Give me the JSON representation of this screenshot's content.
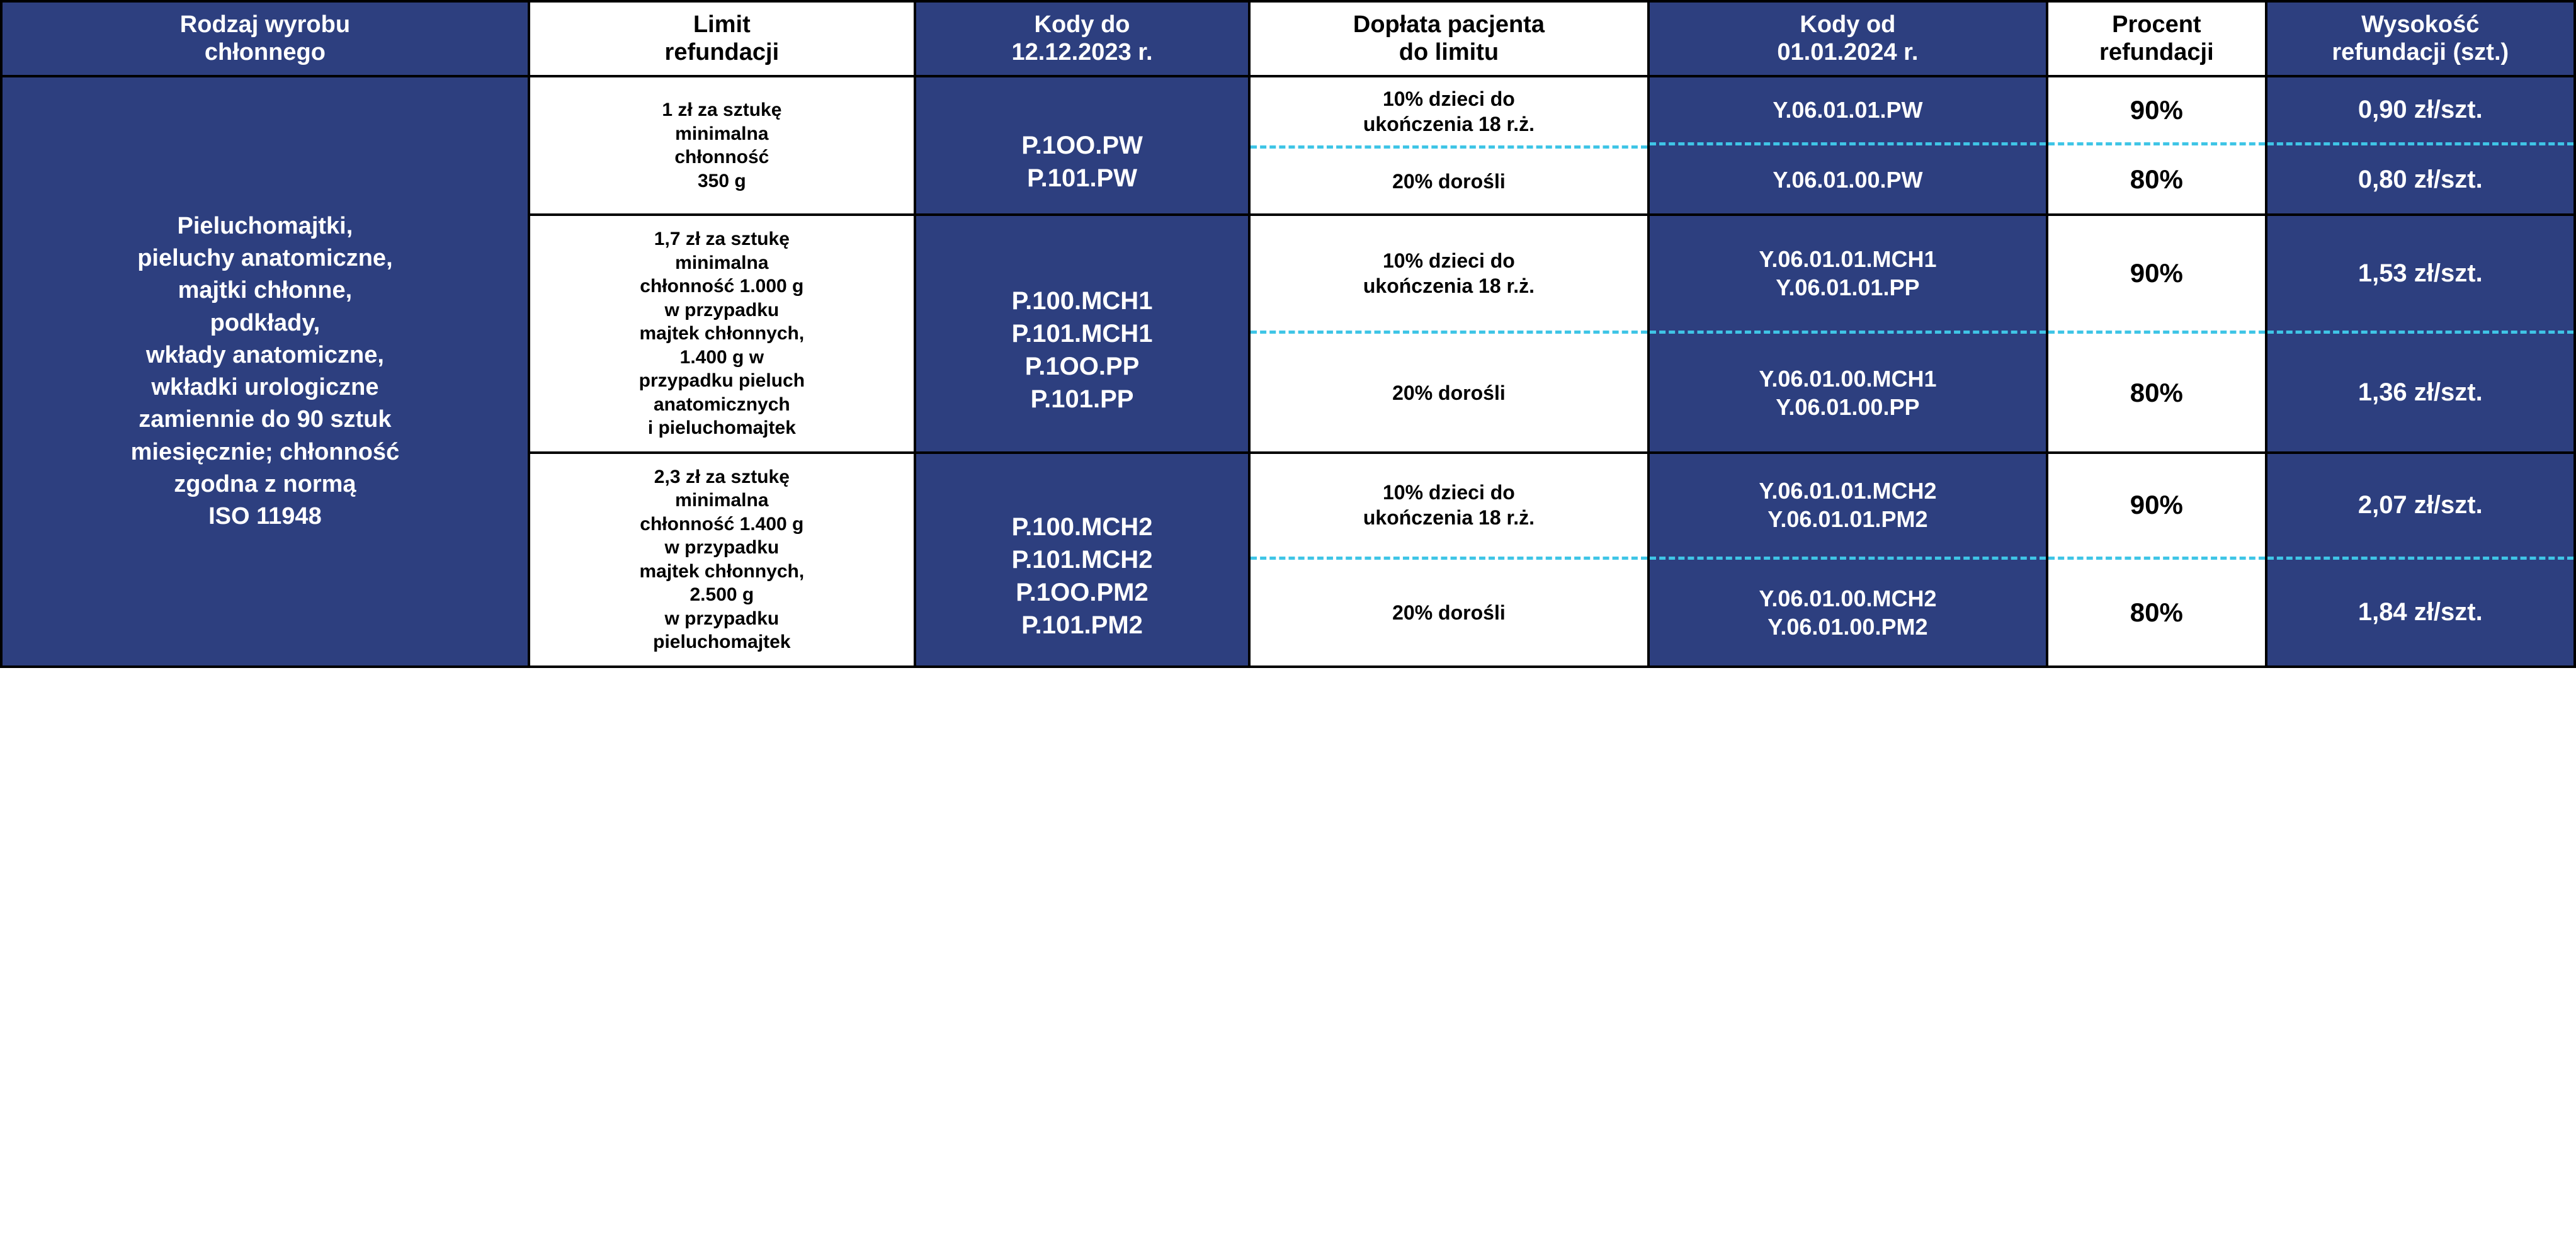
{
  "colors": {
    "blue": "#2d3f7f",
    "white": "#ffffff",
    "black": "#000000",
    "dashed": "#3fc5e6"
  },
  "headers": {
    "c1": "Rodzaj wyrobu\nchłonnego",
    "c2": "Limit\nrefundacji",
    "c3": "Kody do\n12.12.2023 r.",
    "c4": "Dopłata pacjenta\ndo limitu",
    "c5": "Kody od\n01.01.2024 r.",
    "c6": "Procent\nrefundacji",
    "c7": "Wysokość\nrefundacji (szt.)"
  },
  "row_label": "Pieluchomajtki,\npieluchy anatomiczne,\nmajtki chłonne,\npodkłady,\nwkłady anatomiczne,\nwkładki urologiczne\nzamiennie do 90 sztuk\nmiesięcznie; chłonność\nzgodna z normą\nISO 11948",
  "bands": [
    {
      "limit": "1 zł za sztukę\nminimalna\nchłonność\n350 g",
      "codes_old": "P.1OO.PW\nP.101.PW",
      "doplata_top": "10% dzieci do\nukończenia 18 r.ż.",
      "doplata_bot": "20% dorośli",
      "codes_new_top": "Y.06.01.01.PW",
      "codes_new_bot": "Y.06.01.00.PW",
      "procent_top": "90%",
      "procent_bot": "80%",
      "wys_top": "0,90 zł/szt.",
      "wys_bot": "0,80 zł/szt."
    },
    {
      "limit": "1,7 zł za sztukę\nminimalna\nchłonność 1.000 g\nw przypadku\nmajtek chłonnych,\n1.400 g w\nprzypadku pieluch\nanatomicznych\ni pieluchomajtek",
      "codes_old": "P.100.MCH1\nP.101.MCH1\nP.1OO.PP\nP.101.PP",
      "doplata_top": "10% dzieci do\nukończenia 18 r.ż.",
      "doplata_bot": "20% dorośli",
      "codes_new_top": "Y.06.01.01.MCH1\nY.06.01.01.PP",
      "codes_new_bot": "Y.06.01.00.MCH1\nY.06.01.00.PP",
      "procent_top": "90%",
      "procent_bot": "80%",
      "wys_top": "1,53 zł/szt.",
      "wys_bot": "1,36 zł/szt."
    },
    {
      "limit": "2,3 zł za sztukę\nminimalna\nchłonność 1.400 g\nw przypadku\nmajtek chłonnych,\n2.500 g\nw przypadku\npieluchomajtek",
      "codes_old": "P.100.MCH2\nP.101.MCH2\nP.1OO.PM2\nP.101.PM2",
      "doplata_top": "10% dzieci do\nukończenia 18 r.ż.",
      "doplata_bot": "20% dorośli",
      "codes_new_top": "Y.06.01.01.MCH2\nY.06.01.01.PM2",
      "codes_new_bot": "Y.06.01.00.MCH2\nY.06.01.00.PM2",
      "procent_top": "90%",
      "procent_bot": "80%",
      "wys_top": "2,07 zł/szt.",
      "wys_bot": "1,84 zł/szt."
    }
  ]
}
